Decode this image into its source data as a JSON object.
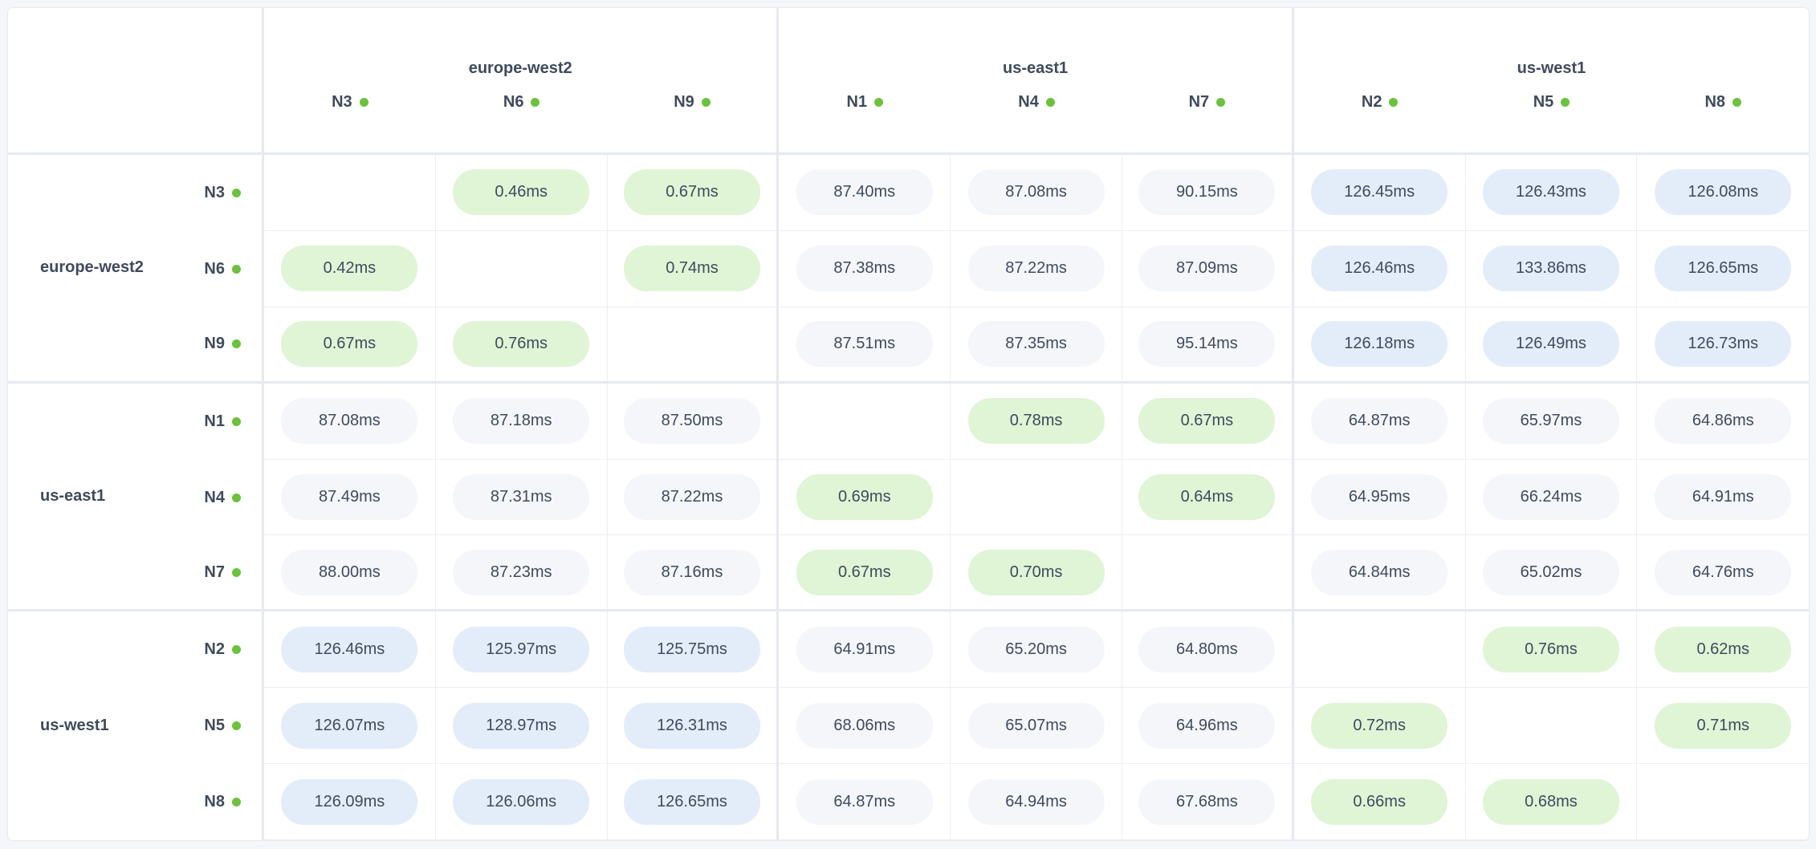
{
  "regions": [
    {
      "name": "europe-west2",
      "nodes": [
        "N3",
        "N6",
        "N9"
      ]
    },
    {
      "name": "us-east1",
      "nodes": [
        "N1",
        "N4",
        "N7"
      ]
    },
    {
      "name": "us-west1",
      "nodes": [
        "N2",
        "N5",
        "N8"
      ]
    }
  ],
  "colors": {
    "status_dot": "#6cc13d",
    "same_region": "#dff5d6",
    "mid_latency": "#f4f6fa",
    "high_latency": "#e3edf9",
    "text": "#3f4a5c"
  },
  "matrix": [
    [
      "",
      "0.46ms",
      "0.67ms",
      "87.40ms",
      "87.08ms",
      "90.15ms",
      "126.45ms",
      "126.43ms",
      "126.08ms"
    ],
    [
      "0.42ms",
      "",
      "0.74ms",
      "87.38ms",
      "87.22ms",
      "87.09ms",
      "126.46ms",
      "133.86ms",
      "126.65ms"
    ],
    [
      "0.67ms",
      "0.76ms",
      "",
      "87.51ms",
      "87.35ms",
      "95.14ms",
      "126.18ms",
      "126.49ms",
      "126.73ms"
    ],
    [
      "87.08ms",
      "87.18ms",
      "87.50ms",
      "",
      "0.78ms",
      "0.67ms",
      "64.87ms",
      "65.97ms",
      "64.86ms"
    ],
    [
      "87.49ms",
      "87.31ms",
      "87.22ms",
      "0.69ms",
      "",
      "0.64ms",
      "64.95ms",
      "66.24ms",
      "64.91ms"
    ],
    [
      "88.00ms",
      "87.23ms",
      "87.16ms",
      "0.67ms",
      "0.70ms",
      "",
      "64.84ms",
      "65.02ms",
      "64.76ms"
    ],
    [
      "126.46ms",
      "125.97ms",
      "125.75ms",
      "64.91ms",
      "65.20ms",
      "64.80ms",
      "",
      "0.76ms",
      "0.62ms"
    ],
    [
      "126.07ms",
      "128.97ms",
      "126.31ms",
      "68.06ms",
      "65.07ms",
      "64.96ms",
      "0.72ms",
      "",
      "0.71ms"
    ],
    [
      "126.09ms",
      "126.06ms",
      "126.65ms",
      "64.87ms",
      "64.94ms",
      "67.68ms",
      "0.66ms",
      "0.68ms",
      ""
    ]
  ]
}
